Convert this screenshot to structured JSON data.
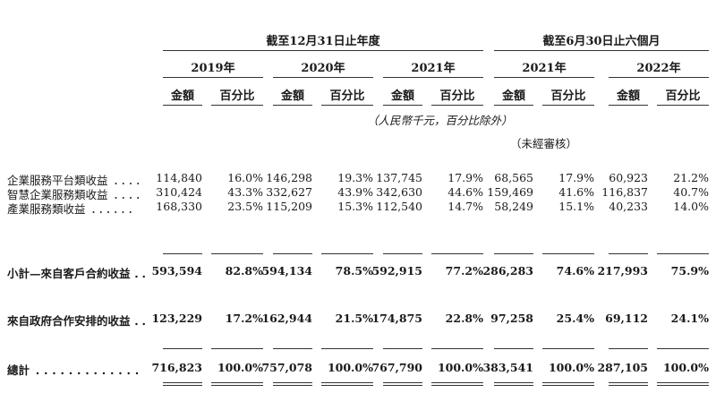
{
  "header": {
    "group1": "截至12月31日止年度",
    "group2": "截至6月30日止六個月",
    "years": [
      "2019年",
      "2020年",
      "2021年",
      "2021年",
      "2022年"
    ],
    "amount": "金額",
    "percent": "百分比",
    "unit_note": "（人民幣千元，百分比除外）",
    "unaudited": "（未經審核）"
  },
  "rows": [
    {
      "label": "企業服務平台類收益",
      "dots": "．．．．",
      "values": [
        "114,840",
        "16.0%",
        "146,298",
        "19.3%",
        "137,745",
        "17.9%",
        "68,565",
        "17.9%",
        "60,923",
        "21.2%"
      ]
    },
    {
      "label": "智慧企業服務類收益",
      "dots": "．．．．",
      "values": [
        "310,424",
        "43.3%",
        "332,627",
        "43.9%",
        "342,630",
        "44.6%",
        "159,469",
        "41.6%",
        "116,837",
        "40.7%"
      ]
    },
    {
      "label": "產業服務類收益",
      "dots": "．．．．．．",
      "values": [
        "168,330",
        "23.5%",
        "115,209",
        "15.3%",
        "112,540",
        "14.7%",
        "58,249",
        "15.1%",
        "40,233",
        "14.0%"
      ]
    },
    {
      "label": "小計—來自客戶合約收益",
      "dots": "．．",
      "values": [
        "593,594",
        "82.8%",
        "594,134",
        "78.5%",
        "592,915",
        "77.2%",
        "286,283",
        "74.6%",
        "217,993",
        "75.9%"
      ]
    },
    {
      "label": "來自政府合作安排的收益",
      "dots": "．．",
      "values": [
        "123,229",
        "17.2%",
        "162,944",
        "21.5%",
        "174,875",
        "22.8%",
        "97,258",
        "25.4%",
        "69,112",
        "24.1%"
      ]
    },
    {
      "label": "總計",
      "dots": "．．．．．．．．．．．．．",
      "values": [
        "716,823",
        "100.0%",
        "757,078",
        "100.0%",
        "767,790",
        "100.0%",
        "383,541",
        "100.0%",
        "287,105",
        "100.0%"
      ]
    }
  ]
}
